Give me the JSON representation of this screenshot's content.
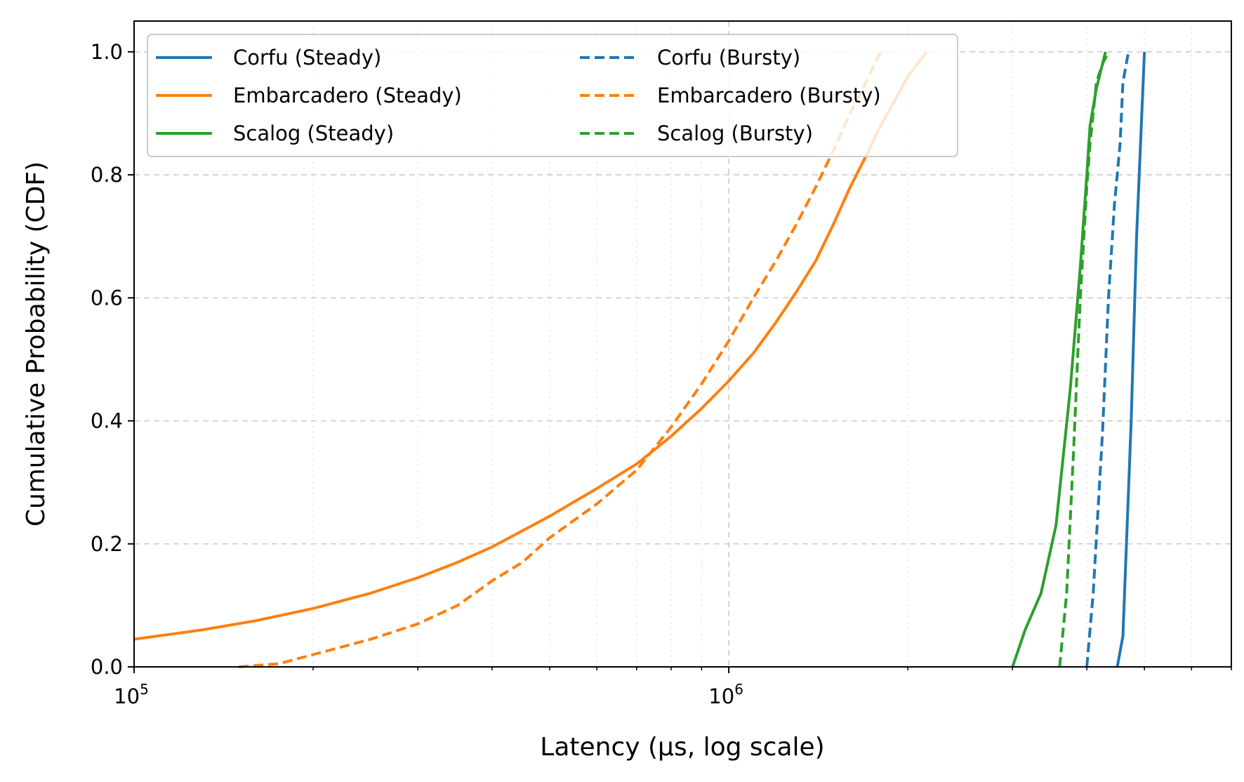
{
  "chart_data": {
    "type": "line",
    "xlabel": "Latency (μs, log scale)",
    "ylabel": "Cumulative Probability (CDF)",
    "xscale": "log",
    "xlim": [
      100000,
      7000000
    ],
    "ylim": [
      0.0,
      1.05
    ],
    "x_ticks": [
      {
        "value": 100000,
        "base": "10",
        "exp": "5"
      },
      {
        "value": 1000000,
        "base": "10",
        "exp": "6"
      }
    ],
    "y_ticks": [
      {
        "value": 0.0,
        "label": "0.0"
      },
      {
        "value": 0.2,
        "label": "0.2"
      },
      {
        "value": 0.4,
        "label": "0.4"
      },
      {
        "value": 0.6,
        "label": "0.6"
      },
      {
        "value": 0.8,
        "label": "0.8"
      },
      {
        "value": 1.0,
        "label": "1.0"
      }
    ],
    "grid": true,
    "legend": {
      "position": "top-left",
      "columns": 2
    },
    "series": [
      {
        "name": "Corfu (Steady)",
        "color": "#1f77b4",
        "dash": "solid",
        "points": [
          [
            4500000,
            0.0
          ],
          [
            4600000,
            0.05
          ],
          [
            4750000,
            0.4
          ],
          [
            4850000,
            0.7
          ],
          [
            5000000,
            1.0
          ]
        ]
      },
      {
        "name": "Embarcadero (Steady)",
        "color": "#ff7f0e",
        "dash": "solid",
        "points": [
          [
            100000,
            0.045
          ],
          [
            130000,
            0.06
          ],
          [
            160000,
            0.075
          ],
          [
            200000,
            0.095
          ],
          [
            250000,
            0.12
          ],
          [
            300000,
            0.145
          ],
          [
            350000,
            0.17
          ],
          [
            400000,
            0.195
          ],
          [
            500000,
            0.245
          ],
          [
            600000,
            0.29
          ],
          [
            700000,
            0.33
          ],
          [
            800000,
            0.375
          ],
          [
            900000,
            0.42
          ],
          [
            1000000,
            0.465
          ],
          [
            1100000,
            0.51
          ],
          [
            1200000,
            0.56
          ],
          [
            1300000,
            0.61
          ],
          [
            1400000,
            0.66
          ],
          [
            1500000,
            0.72
          ],
          [
            1600000,
            0.78
          ],
          [
            1700000,
            0.83
          ],
          [
            1800000,
            0.88
          ],
          [
            1900000,
            0.92
          ],
          [
            2000000,
            0.96
          ],
          [
            2150000,
            1.0
          ]
        ]
      },
      {
        "name": "Scalog (Steady)",
        "color": "#2ca02c",
        "dash": "solid",
        "points": [
          [
            3000000,
            0.0
          ],
          [
            3150000,
            0.06
          ],
          [
            3350000,
            0.12
          ],
          [
            3550000,
            0.23
          ],
          [
            3750000,
            0.45
          ],
          [
            3900000,
            0.65
          ],
          [
            4000000,
            0.8
          ],
          [
            4050000,
            0.88
          ],
          [
            4150000,
            0.94
          ],
          [
            4300000,
            1.0
          ]
        ]
      },
      {
        "name": "Corfu (Bursty)",
        "color": "#1f77b4",
        "dash": "dashed",
        "points": [
          [
            4000000,
            0.0
          ],
          [
            4100000,
            0.12
          ],
          [
            4250000,
            0.38
          ],
          [
            4350000,
            0.6
          ],
          [
            4450000,
            0.75
          ],
          [
            4550000,
            0.85
          ],
          [
            4600000,
            0.95
          ],
          [
            4700000,
            1.0
          ]
        ]
      },
      {
        "name": "Embarcadero (Bursty)",
        "color": "#ff7f0e",
        "dash": "dashed",
        "points": [
          [
            150000,
            0.0
          ],
          [
            175000,
            0.005
          ],
          [
            200000,
            0.02
          ],
          [
            250000,
            0.045
          ],
          [
            300000,
            0.07
          ],
          [
            350000,
            0.1
          ],
          [
            400000,
            0.14
          ],
          [
            450000,
            0.17
          ],
          [
            500000,
            0.21
          ],
          [
            600000,
            0.265
          ],
          [
            700000,
            0.32
          ],
          [
            800000,
            0.39
          ],
          [
            900000,
            0.46
          ],
          [
            1000000,
            0.53
          ],
          [
            1100000,
            0.6
          ],
          [
            1200000,
            0.66
          ],
          [
            1300000,
            0.72
          ],
          [
            1400000,
            0.78
          ],
          [
            1500000,
            0.84
          ],
          [
            1600000,
            0.9
          ],
          [
            1700000,
            0.95
          ],
          [
            1800000,
            1.0
          ]
        ]
      },
      {
        "name": "Scalog (Bursty)",
        "color": "#2ca02c",
        "dash": "dashed",
        "points": [
          [
            3600000,
            0.0
          ],
          [
            3700000,
            0.12
          ],
          [
            3800000,
            0.35
          ],
          [
            3900000,
            0.6
          ],
          [
            4000000,
            0.78
          ],
          [
            4050000,
            0.85
          ],
          [
            4100000,
            0.9
          ],
          [
            4150000,
            0.95
          ],
          [
            4250000,
            0.98
          ],
          [
            4350000,
            1.0
          ]
        ]
      }
    ]
  }
}
